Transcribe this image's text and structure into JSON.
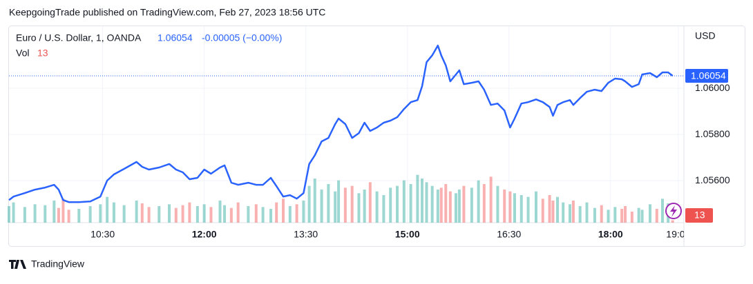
{
  "chart_data": {
    "type": "line",
    "header": "KeepgoingTrade published on TradingView.com, Feb 27, 2023 18:56 UTC",
    "title": "Euro / U.S. Dollar, 1, OANDA",
    "change_text": "-0.00005 (−0.00%)",
    "volume_label": "Vol",
    "currency": "USD",
    "brand": "TradingView",
    "x": [
      "09:07",
      "09:11",
      "09:21",
      "09:30",
      "09:39",
      "09:47",
      "09:51",
      "09:55",
      "10:00",
      "10:09",
      "10:19",
      "10:28",
      "10:34",
      "10:40",
      "10:49",
      "11:00",
      "11:05",
      "11:11",
      "11:20",
      "11:29",
      "11:35",
      "11:41",
      "11:47",
      "11:54",
      "12:00",
      "12:06",
      "12:14",
      "12:18",
      "12:24",
      "12:30",
      "12:39",
      "12:46",
      "12:52",
      "12:59",
      "13:04",
      "13:10",
      "13:16",
      "13:22",
      "13:28",
      "13:33",
      "13:38",
      "13:44",
      "13:50",
      "13:56",
      "13:59",
      "14:05",
      "14:11",
      "14:17",
      "14:22",
      "14:27",
      "14:33",
      "14:39",
      "14:45",
      "14:51",
      "14:57",
      "15:03",
      "15:09",
      "15:13",
      "15:17",
      "15:22",
      "15:27",
      "15:30",
      "15:34",
      "15:38",
      "15:43",
      "15:46",
      "15:50",
      "15:57",
      "16:03",
      "16:08",
      "16:14",
      "16:20",
      "16:26",
      "16:31",
      "16:35",
      "16:41",
      "16:47",
      "16:54",
      "17:00",
      "17:06",
      "17:09",
      "17:13",
      "17:18",
      "17:24",
      "17:27",
      "17:33",
      "17:39",
      "17:46",
      "17:52",
      "17:58",
      "18:04",
      "18:10",
      "18:13",
      "18:19",
      "18:25",
      "18:28",
      "18:35",
      "18:41",
      "18:46",
      "18:51",
      "18:55"
    ],
    "series": [
      {
        "name": "Euro / U.S. Dollar",
        "color": "#2962ff",
        "values": [
          1.05516,
          1.05531,
          1.05546,
          1.05561,
          1.0557,
          1.05582,
          1.05561,
          1.05516,
          1.05507,
          1.05507,
          1.0551,
          1.05531,
          1.056,
          1.05627,
          1.05651,
          1.05681,
          1.0566,
          1.05648,
          1.05657,
          1.05672,
          1.05648,
          1.05636,
          1.05606,
          1.05612,
          1.05648,
          1.0563,
          1.05657,
          1.05666,
          1.05591,
          1.05582,
          1.05591,
          1.05582,
          1.05582,
          1.05612,
          1.05576,
          1.05531,
          1.05537,
          1.05522,
          1.05546,
          1.05672,
          1.0571,
          1.0577,
          1.05785,
          1.05845,
          1.05869,
          1.05845,
          1.05785,
          1.05806,
          1.05851,
          1.05815,
          1.0583,
          1.05851,
          1.0586,
          1.05875,
          1.0591,
          1.0594,
          1.05949,
          1.06009,
          1.06113,
          1.06143,
          1.06185,
          1.06143,
          1.06099,
          1.0603,
          1.0606,
          1.06078,
          1.06018,
          1.06024,
          1.0603,
          1.05994,
          1.05928,
          1.05934,
          1.05904,
          1.0583,
          1.05869,
          1.05934,
          1.0594,
          1.05952,
          1.0594,
          1.05919,
          1.05881,
          1.05928,
          1.0594,
          1.05949,
          1.05928,
          1.05958,
          1.05985,
          1.05994,
          1.05988,
          1.06024,
          1.06042,
          1.06039,
          1.0603,
          1.06006,
          1.06018,
          1.0606,
          1.06066,
          1.06048,
          1.06069,
          1.06069,
          1.06054
        ]
      }
    ],
    "volume": {
      "up_color": "rgba(38,166,154,0.45)",
      "down_color": "rgba(239,83,80,0.45)",
      "vlim": [
        0,
        300
      ],
      "values": [
        90,
        110,
        85,
        100,
        95,
        120,
        80,
        130,
        70,
        75,
        90,
        100,
        140,
        110,
        95,
        120,
        105,
        85,
        90,
        100,
        80,
        95,
        110,
        90,
        100,
        85,
        120,
        95,
        80,
        110,
        90,
        100,
        85,
        75,
        110,
        130,
        90,
        100,
        120,
        200,
        240,
        180,
        210,
        170,
        230,
        190,
        200,
        160,
        180,
        220,
        170,
        150,
        190,
        200,
        230,
        210,
        260,
        240,
        220,
        200,
        180,
        190,
        210,
        170,
        160,
        180,
        200,
        190,
        230,
        210,
        250,
        200,
        180,
        170,
        160,
        150,
        140,
        170,
        130,
        150,
        120,
        140,
        110,
        100,
        120,
        90,
        110,
        80,
        95,
        70,
        85,
        75,
        90,
        60,
        80,
        70,
        100,
        75,
        130,
        105,
        13
      ]
    },
    "xlim": [
      "09:07",
      "19:05"
    ],
    "xticks": [
      "10:30",
      "12:00",
      "13:30",
      "15:00",
      "16:30",
      "18:00",
      "19:00"
    ],
    "ylim": [
      1.05418,
      1.06269
    ],
    "yticks": [
      {
        "value": 1.056,
        "label": "1.05600"
      },
      {
        "value": 1.058,
        "label": "1.05800"
      },
      {
        "value": 1.06,
        "label": "1.06000"
      }
    ],
    "grid": true
  }
}
